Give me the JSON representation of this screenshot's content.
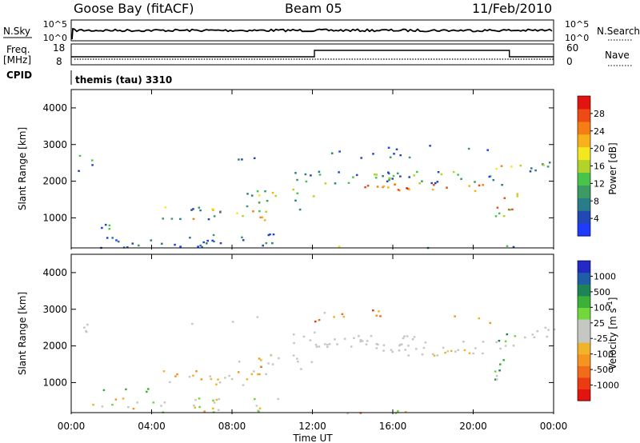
{
  "header": {
    "station": "Goose Bay (fitACF)",
    "beam": "Beam 05",
    "date": "11/Feb/2010"
  },
  "status_panels": {
    "nsky_label": "N.Sky",
    "nsky_ticks": [
      "10^5",
      "10^0"
    ],
    "nsearch_label": "N.Search",
    "nsearch_ticks": [
      "10^5",
      "10^0"
    ],
    "freq_label": "Freq.",
    "freq_unit": "[MHz]",
    "freq_ticks": [
      "18",
      "8"
    ],
    "nave_label": "Nave",
    "nave_ticks": [
      "60",
      "0"
    ],
    "cpid_label": "CPID",
    "cpid_value": "themis (tau) 3310"
  },
  "chart_data": [
    {
      "type": "heatmap",
      "name": "power",
      "ylabel": "Slant Range [km]",
      "ylim": [
        180,
        4500
      ],
      "yticks": [
        {
          "value": 1000,
          "label": "1000"
        },
        {
          "value": 2000,
          "label": "2000"
        },
        {
          "value": 3000,
          "label": "3000"
        },
        {
          "value": 4000,
          "label": "4000"
        }
      ],
      "colorbar_label": "Power [dB]",
      "colorbar": {
        "labels": [
          "4",
          "8",
          "12",
          "16",
          "20",
          "24",
          "28"
        ],
        "colors": [
          "#1f3bff",
          "#2148b4",
          "#2a7d86",
          "#3b9b62",
          "#49c44a",
          "#b2d32a",
          "#f3e820",
          "#f7b11b",
          "#f47e14",
          "#ee4a14",
          "#e1140f"
        ]
      }
    },
    {
      "type": "heatmap",
      "name": "velocity",
      "ylabel": "Slant Range [km]",
      "ylim": [
        180,
        4500
      ],
      "yticks": [
        {
          "value": 1000,
          "label": "1000"
        },
        {
          "value": 2000,
          "label": "2000"
        },
        {
          "value": 3000,
          "label": "3000"
        },
        {
          "value": 4000,
          "label": "4000"
        }
      ],
      "colorbar_label": "Velocity [m s",
      "colorbar_label_sup": "-1",
      "colorbar_label_end": "]",
      "colorbar": {
        "labels": [
          "1000",
          "500",
          "100",
          "25",
          "-25",
          "-100",
          "-500",
          "-1000"
        ],
        "colors": [
          "#2229c4",
          "#1f5ea7",
          "#1e8458",
          "#3bb13a",
          "#72d73a",
          "#c5c7c3",
          "#c5c7c3",
          "#f2b32a",
          "#f69420",
          "#f26b18",
          "#ea3b12",
          "#e1140f"
        ]
      }
    }
  ],
  "time_axis": {
    "xlabel": "Time UT",
    "xlim": [
      0,
      24
    ],
    "ticks": [
      {
        "value": 0,
        "label": "00:00"
      },
      {
        "value": 4,
        "label": "04:00"
      },
      {
        "value": 8,
        "label": "08:00"
      },
      {
        "value": 12,
        "label": "12:00"
      },
      {
        "value": 16,
        "label": "16:00"
      },
      {
        "value": 20,
        "label": "20:00"
      },
      {
        "value": 24,
        "label": "00:00"
      }
    ]
  }
}
